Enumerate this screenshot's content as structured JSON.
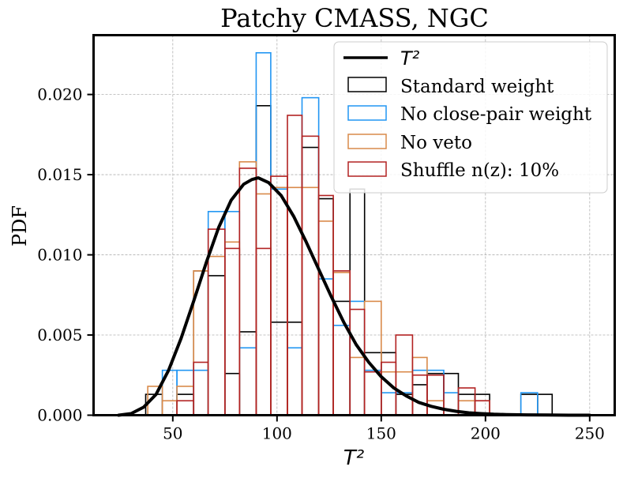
{
  "chart_data": {
    "type": "histogram",
    "title": "Patchy CMASS, NGC",
    "xlabel": "T²",
    "ylabel": "PDF",
    "xlim": [
      12,
      262
    ],
    "ylim": [
      0,
      0.0237
    ],
    "xticks": [
      50,
      100,
      150,
      200,
      250
    ],
    "yticks": [
      0.0,
      0.005,
      0.01,
      0.015,
      0.02
    ],
    "xtick_labels": [
      "50",
      "100",
      "150",
      "200",
      "250"
    ],
    "ytick_labels": [
      "0.000",
      "0.005",
      "0.010",
      "0.015",
      "0.020"
    ],
    "grid": true,
    "legend_position": "top-right",
    "curve": {
      "name": "T²",
      "color": "#000000",
      "peak_x": 91,
      "peak_y": 0.0148,
      "x": [
        24,
        30,
        36,
        42,
        48,
        54,
        60,
        66,
        72,
        78,
        84,
        88,
        91,
        96,
        102,
        108,
        114,
        120,
        126,
        132,
        138,
        144,
        150,
        156,
        162,
        168,
        174,
        180,
        186,
        192,
        198,
        204,
        210,
        220,
        230,
        240,
        250
      ],
      "y": [
        0.0,
        0.0001,
        0.0005,
        0.0013,
        0.0028,
        0.0048,
        0.0071,
        0.0095,
        0.0117,
        0.0134,
        0.0144,
        0.0147,
        0.0148,
        0.0145,
        0.0137,
        0.0124,
        0.0108,
        0.0091,
        0.0074,
        0.0058,
        0.0044,
        0.0033,
        0.0024,
        0.0017,
        0.0012,
        0.0008,
        0.00055,
        0.00037,
        0.00024,
        0.00015,
        0.0001,
        6e-05,
        4e-05,
        2e-05,
        1e-05,
        0.0,
        0.0
      ]
    },
    "series": [
      {
        "name": "Standard weight",
        "color": "#000000",
        "bins": [
          [
            37,
            45,
            0.0013
          ],
          [
            45,
            52,
            0.0
          ],
          [
            52,
            60,
            0.0013
          ],
          [
            60,
            67,
            0.009
          ],
          [
            67,
            75,
            0.0087
          ],
          [
            75,
            82,
            0.0026
          ],
          [
            82,
            90,
            0.0052
          ],
          [
            90,
            97,
            0.0193
          ],
          [
            97,
            105,
            0.0058
          ],
          [
            105,
            112,
            0.0058
          ],
          [
            112,
            120,
            0.0167
          ],
          [
            120,
            127,
            0.0135
          ],
          [
            127,
            135,
            0.0071
          ],
          [
            135,
            142,
            0.0141
          ],
          [
            142,
            150,
            0.0039
          ],
          [
            150,
            157,
            0.0039
          ],
          [
            157,
            165,
            0.0013
          ],
          [
            165,
            172,
            0.0019
          ],
          [
            172,
            180,
            0.0026
          ],
          [
            180,
            187,
            0.0026
          ],
          [
            187,
            195,
            0.0013
          ],
          [
            195,
            202,
            0.0013
          ],
          [
            202,
            210,
            0.0
          ],
          [
            210,
            217,
            0.0
          ],
          [
            217,
            225,
            0.0013
          ],
          [
            225,
            232,
            0.0013
          ]
        ]
      },
      {
        "name": "No close-pair weight",
        "color": "#2196f3",
        "bins": [
          [
            45,
            52,
            0.0028
          ],
          [
            52,
            60,
            0.0028
          ],
          [
            60,
            67,
            0.0028
          ],
          [
            67,
            75,
            0.0127
          ],
          [
            75,
            82,
            0.0127
          ],
          [
            82,
            90,
            0.0042
          ],
          [
            90,
            97,
            0.0226
          ],
          [
            97,
            105,
            0.0141
          ],
          [
            105,
            112,
            0.0042
          ],
          [
            112,
            120,
            0.0198
          ],
          [
            120,
            127,
            0.0085
          ],
          [
            127,
            135,
            0.0056
          ],
          [
            135,
            142,
            0.0071
          ],
          [
            142,
            150,
            0.0028
          ],
          [
            150,
            157,
            0.0014
          ],
          [
            157,
            165,
            0.0014
          ],
          [
            165,
            172,
            0.0028
          ],
          [
            172,
            180,
            0.0028
          ],
          [
            180,
            187,
            0.0014
          ],
          [
            187,
            195,
            0.0
          ],
          [
            195,
            202,
            0.0
          ],
          [
            202,
            210,
            0.0
          ],
          [
            210,
            217,
            0.0
          ],
          [
            217,
            225,
            0.0014
          ]
        ]
      },
      {
        "name": "No veto",
        "color": "#d98a4a",
        "bins": [
          [
            38,
            45,
            0.0018
          ],
          [
            45,
            52,
            0.0009
          ],
          [
            52,
            60,
            0.0018
          ],
          [
            60,
            67,
            0.009
          ],
          [
            67,
            75,
            0.0099
          ],
          [
            75,
            82,
            0.0108
          ],
          [
            82,
            90,
            0.0158
          ],
          [
            90,
            97,
            0.0138
          ],
          [
            97,
            105,
            0.0142
          ],
          [
            105,
            112,
            0.0142
          ],
          [
            112,
            120,
            0.0142
          ],
          [
            120,
            127,
            0.0121
          ],
          [
            127,
            135,
            0.0089
          ],
          [
            135,
            142,
            0.0036
          ],
          [
            142,
            150,
            0.0071
          ],
          [
            150,
            157,
            0.0027
          ],
          [
            157,
            165,
            0.0027
          ],
          [
            165,
            172,
            0.0036
          ],
          [
            172,
            180,
            0.0009
          ],
          [
            180,
            187,
            0.0
          ],
          [
            187,
            195,
            0.0009
          ],
          [
            195,
            202,
            0.0009
          ]
        ]
      },
      {
        "name": "Shuffle n(z): 10%",
        "color": "#b22222",
        "bins": [
          [
            45,
            52,
            0.0
          ],
          [
            52,
            60,
            0.0009
          ],
          [
            60,
            67,
            0.0033
          ],
          [
            67,
            75,
            0.0116
          ],
          [
            75,
            82,
            0.0104
          ],
          [
            82,
            90,
            0.0154
          ],
          [
            90,
            97,
            0.0104
          ],
          [
            97,
            105,
            0.0149
          ],
          [
            105,
            112,
            0.0187
          ],
          [
            112,
            120,
            0.0174
          ],
          [
            120,
            127,
            0.0137
          ],
          [
            127,
            135,
            0.009
          ],
          [
            135,
            142,
            0.0066
          ],
          [
            142,
            150,
            0.0027
          ],
          [
            150,
            157,
            0.0033
          ],
          [
            157,
            165,
            0.005
          ],
          [
            165,
            172,
            0.0025
          ],
          [
            172,
            180,
            0.0025
          ],
          [
            180,
            187,
            0.0
          ],
          [
            187,
            195,
            0.0017
          ],
          [
            195,
            202,
            0.0009
          ]
        ]
      }
    ]
  }
}
